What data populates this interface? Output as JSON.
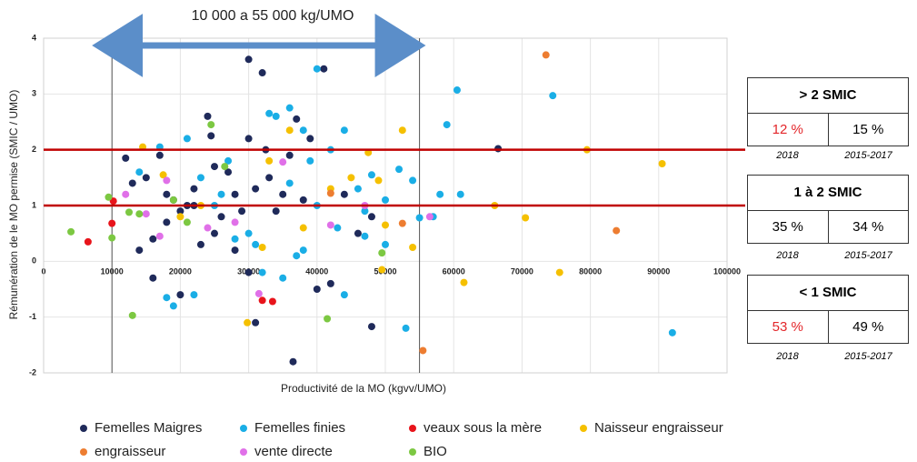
{
  "chart_data": {
    "type": "scatter",
    "annotation": "10 000 a 55 000 kg/UMO",
    "arrow": [
      10000,
      53000
    ],
    "vlines": [
      10000,
      55000
    ],
    "hlines": [
      1,
      2
    ],
    "xlabel": "Productivité de la MO (kgvv/UMO)",
    "ylabel": "Rémunération de le MO permise (SMIC / UMO)",
    "xlim": [
      0,
      100000
    ],
    "ylim": [
      -2,
      4
    ],
    "xticks": [
      0,
      10000,
      20000,
      30000,
      40000,
      50000,
      60000,
      70000,
      80000,
      90000,
      100000
    ],
    "yticks": [
      -2,
      -1,
      0,
      1,
      2,
      3,
      4
    ],
    "grid": true,
    "series": [
      {
        "name": "Femelles Maigres",
        "color": "#1f2a5a",
        "x": [
          12000,
          13000,
          14000,
          15000,
          16000,
          17000,
          18000,
          19000,
          20000,
          21000,
          22000,
          23000,
          24000,
          24500,
          25000,
          26000,
          27000,
          28000,
          29000,
          30000,
          30000,
          31000,
          32000,
          32500,
          33000,
          34000,
          35000,
          36000,
          37000,
          38000,
          39000,
          40000,
          41000,
          42000,
          44000,
          46000,
          48000,
          30000,
          25000,
          20000,
          18000,
          16000,
          36500,
          48000,
          66500,
          31000,
          28000,
          22000
        ],
        "values": [
          1.85,
          1.4,
          0.2,
          1.5,
          -0.3,
          1.9,
          1.2,
          1.1,
          0.9,
          1.0,
          1.3,
          0.3,
          2.6,
          2.25,
          1.7,
          0.8,
          1.6,
          1.2,
          0.9,
          3.62,
          2.2,
          1.3,
          3.38,
          2.0,
          1.5,
          0.9,
          1.2,
          1.9,
          2.55,
          1.1,
          2.2,
          -0.5,
          3.45,
          -0.4,
          1.2,
          0.5,
          -1.17,
          -0.2,
          0.5,
          -0.6,
          0.7,
          0.4,
          -1.8,
          0.8,
          2.02,
          -1.1,
          0.2,
          1.0
        ]
      },
      {
        "name": "Femelles finies",
        "color": "#1aaee6",
        "x": [
          14000,
          17000,
          19000,
          21000,
          23000,
          26000,
          28000,
          31000,
          33000,
          34000,
          36000,
          38000,
          39000,
          40000,
          42000,
          44000,
          46000,
          47000,
          48000,
          50000,
          52000,
          54000,
          55000,
          57000,
          58000,
          59000,
          60500,
          61000,
          74500,
          92000,
          40000,
          44000,
          47000,
          53000,
          18000,
          22000,
          27000,
          30000,
          35000,
          37000,
          43000,
          32000,
          25000,
          36000,
          50000,
          38000
        ],
        "values": [
          1.6,
          2.05,
          -0.8,
          2.2,
          1.5,
          1.2,
          0.4,
          0.3,
          2.65,
          2.6,
          2.75,
          2.35,
          1.8,
          3.45,
          2.0,
          2.35,
          1.3,
          0.45,
          1.55,
          1.1,
          1.65,
          1.45,
          0.78,
          0.8,
          1.2,
          2.45,
          3.07,
          1.2,
          2.97,
          -1.28,
          1.0,
          -0.6,
          0.9,
          -1.2,
          -0.65,
          -0.6,
          1.8,
          0.5,
          -0.3,
          0.1,
          0.6,
          -0.2,
          1.0,
          1.4,
          0.3,
          0.2
        ]
      },
      {
        "name": "veaux sous la mère",
        "color": "#e8141b",
        "x": [
          6500,
          10000,
          10200,
          32000,
          33500
        ],
        "values": [
          0.35,
          0.68,
          1.08,
          -0.7,
          -0.72
        ]
      },
      {
        "name": "Naisseur engraisseur",
        "color": "#f5c000",
        "x": [
          14500,
          17500,
          20000,
          23000,
          29800,
          33000,
          36000,
          38000,
          42000,
          45000,
          47500,
          49000,
          50000,
          52500,
          54000,
          61500,
          66000,
          70500,
          75500,
          79500,
          90500,
          49500,
          32000
        ],
        "values": [
          2.05,
          1.55,
          0.8,
          1.0,
          -1.1,
          1.8,
          2.35,
          0.6,
          1.3,
          1.5,
          1.95,
          1.45,
          0.65,
          2.35,
          0.25,
          -0.38,
          1.0,
          0.78,
          -0.2,
          2.0,
          1.75,
          -0.15,
          0.25
        ]
      },
      {
        "name": "engraisseur",
        "color": "#ed7d31",
        "x": [
          42000,
          52500,
          55500,
          73500,
          83800
        ],
        "values": [
          1.22,
          0.68,
          -1.6,
          3.7,
          0.55
        ]
      },
      {
        "name": "vente directe",
        "color": "#e070e8",
        "x": [
          12000,
          15000,
          17000,
          18000,
          24000,
          28000,
          31500,
          35000,
          42000,
          56500,
          47000
        ],
        "values": [
          1.2,
          0.85,
          0.45,
          1.45,
          0.6,
          0.7,
          -0.58,
          1.78,
          0.65,
          0.8,
          1.0
        ]
      },
      {
        "name": "BIO",
        "color": "#7cc842",
        "x": [
          4000,
          9500,
          10000,
          12500,
          13000,
          19000,
          21000,
          24500,
          26500,
          41500,
          49500,
          14000
        ],
        "values": [
          0.53,
          1.15,
          0.42,
          0.88,
          -0.97,
          1.1,
          0.7,
          2.45,
          1.7,
          -1.03,
          0.15,
          0.85
        ]
      }
    ]
  },
  "tables": [
    {
      "header": "> 2 SMIC",
      "values": [
        "12 %",
        "15 %"
      ],
      "years": [
        "2018",
        "2015-2017"
      ]
    },
    {
      "header": "1 à 2 SMIC",
      "values": [
        "35 %",
        "34 %"
      ],
      "years": [
        "2018",
        "2015-2017"
      ]
    },
    {
      "header": "< 1 SMIC",
      "values": [
        "53 %",
        "49 %"
      ],
      "years": [
        "2018",
        "2015-2017"
      ]
    }
  ]
}
